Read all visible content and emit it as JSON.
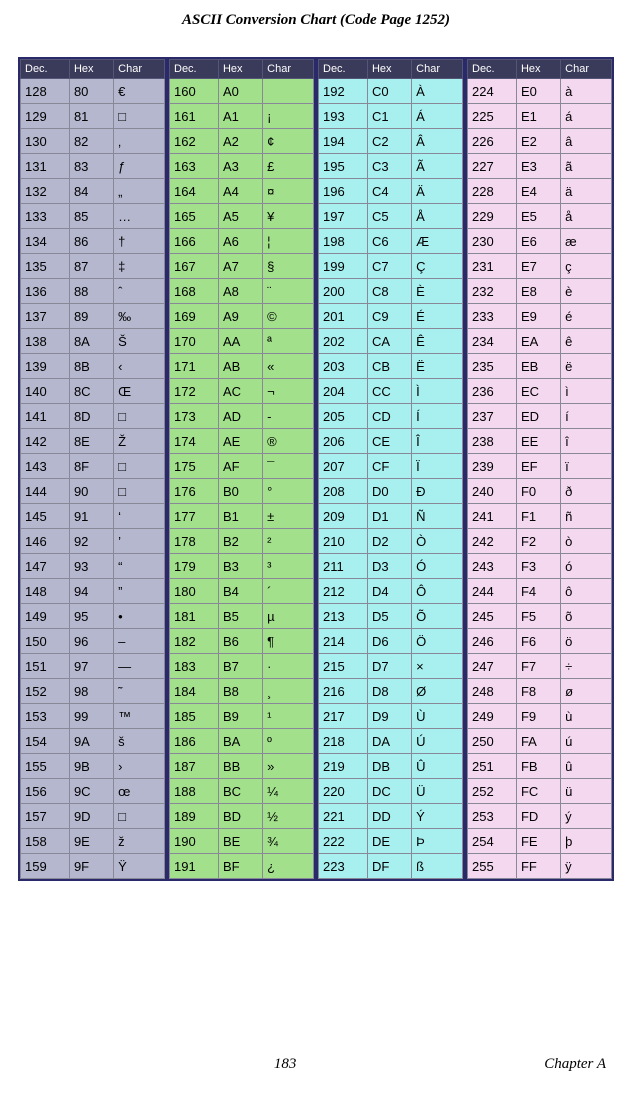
{
  "title": "ASCII Conversion Chart (Code Page 1252)",
  "page_number": "183",
  "chapter": "Chapter A",
  "headers": [
    "Dec.",
    "Hex",
    "Char"
  ],
  "column_colors": [
    "#b5b7ce",
    "#a2e08c",
    "#a8f0f0",
    "#f4d8f0"
  ],
  "header_bg": "#3a3a5a",
  "header_fg": "#ffffff",
  "border_color": "#2a2a6a",
  "columns": [
    [
      [
        "128",
        "80",
        "€"
      ],
      [
        "129",
        "81",
        "□"
      ],
      [
        "130",
        "82",
        "‚"
      ],
      [
        "131",
        "83",
        "ƒ"
      ],
      [
        "132",
        "84",
        "„"
      ],
      [
        "133",
        "85",
        "…"
      ],
      [
        "134",
        "86",
        "†"
      ],
      [
        "135",
        "87",
        "‡"
      ],
      [
        "136",
        "88",
        "ˆ"
      ],
      [
        "137",
        "89",
        "‰"
      ],
      [
        "138",
        "8A",
        "Š"
      ],
      [
        "139",
        "8B",
        "‹"
      ],
      [
        "140",
        "8C",
        "Œ"
      ],
      [
        "141",
        "8D",
        "□"
      ],
      [
        "142",
        "8E",
        "Ž"
      ],
      [
        "143",
        "8F",
        "□"
      ],
      [
        "144",
        "90",
        "□"
      ],
      [
        "145",
        "91",
        "‘"
      ],
      [
        "146",
        "92",
        "’"
      ],
      [
        "147",
        "93",
        "“"
      ],
      [
        "148",
        "94",
        "”"
      ],
      [
        "149",
        "95",
        "•"
      ],
      [
        "150",
        "96",
        "–"
      ],
      [
        "151",
        "97",
        "—"
      ],
      [
        "152",
        "98",
        "˜"
      ],
      [
        "153",
        "99",
        "™"
      ],
      [
        "154",
        "9A",
        "š"
      ],
      [
        "155",
        "9B",
        "›"
      ],
      [
        "156",
        "9C",
        "œ"
      ],
      [
        "157",
        "9D",
        "□"
      ],
      [
        "158",
        "9E",
        "ž"
      ],
      [
        "159",
        "9F",
        "Ÿ"
      ]
    ],
    [
      [
        "160",
        "A0",
        " "
      ],
      [
        "161",
        "A1",
        "¡"
      ],
      [
        "162",
        "A2",
        "¢"
      ],
      [
        "163",
        "A3",
        "£"
      ],
      [
        "164",
        "A4",
        "¤"
      ],
      [
        "165",
        "A5",
        "¥"
      ],
      [
        "166",
        "A6",
        "¦"
      ],
      [
        "167",
        "A7",
        "§"
      ],
      [
        "168",
        "A8",
        "¨"
      ],
      [
        "169",
        "A9",
        "©"
      ],
      [
        "170",
        "AA",
        "ª"
      ],
      [
        "171",
        "AB",
        "«"
      ],
      [
        "172",
        "AC",
        "¬"
      ],
      [
        "173",
        "AD",
        "-"
      ],
      [
        "174",
        "AE",
        "®"
      ],
      [
        "175",
        "AF",
        "¯"
      ],
      [
        "176",
        "B0",
        "°"
      ],
      [
        "177",
        "B1",
        "±"
      ],
      [
        "178",
        "B2",
        "²"
      ],
      [
        "179",
        "B3",
        "³"
      ],
      [
        "180",
        "B4",
        "´"
      ],
      [
        "181",
        "B5",
        "µ"
      ],
      [
        "182",
        "B6",
        "¶"
      ],
      [
        "183",
        "B7",
        "·"
      ],
      [
        "184",
        "B8",
        "¸"
      ],
      [
        "185",
        "B9",
        "¹"
      ],
      [
        "186",
        "BA",
        "º"
      ],
      [
        "187",
        "BB",
        "»"
      ],
      [
        "188",
        "BC",
        "¼"
      ],
      [
        "189",
        "BD",
        "½"
      ],
      [
        "190",
        "BE",
        "¾"
      ],
      [
        "191",
        "BF",
        "¿"
      ]
    ],
    [
      [
        "192",
        "C0",
        "À"
      ],
      [
        "193",
        "C1",
        "Á"
      ],
      [
        "194",
        "C2",
        "Â"
      ],
      [
        "195",
        "C3",
        "Ã"
      ],
      [
        "196",
        "C4",
        "Ä"
      ],
      [
        "197",
        "C5",
        "Å"
      ],
      [
        "198",
        "C6",
        "Æ"
      ],
      [
        "199",
        "C7",
        "Ç"
      ],
      [
        "200",
        "C8",
        "È"
      ],
      [
        "201",
        "C9",
        "É"
      ],
      [
        "202",
        "CA",
        "Ê"
      ],
      [
        "203",
        "CB",
        "Ë"
      ],
      [
        "204",
        "CC",
        "Ì"
      ],
      [
        "205",
        "CD",
        "Í"
      ],
      [
        "206",
        "CE",
        "Î"
      ],
      [
        "207",
        "CF",
        "Ï"
      ],
      [
        "208",
        "D0",
        "Ð"
      ],
      [
        "209",
        "D1",
        "Ñ"
      ],
      [
        "210",
        "D2",
        "Ò"
      ],
      [
        "211",
        "D3",
        "Ó"
      ],
      [
        "212",
        "D4",
        "Ô"
      ],
      [
        "213",
        "D5",
        "Õ"
      ],
      [
        "214",
        "D6",
        "Ö"
      ],
      [
        "215",
        "D7",
        "×"
      ],
      [
        "216",
        "D8",
        "Ø"
      ],
      [
        "217",
        "D9",
        "Ù"
      ],
      [
        "218",
        "DA",
        "Ú"
      ],
      [
        "219",
        "DB",
        "Û"
      ],
      [
        "220",
        "DC",
        "Ü"
      ],
      [
        "221",
        "DD",
        "Ý"
      ],
      [
        "222",
        "DE",
        "Þ"
      ],
      [
        "223",
        "DF",
        "ß"
      ]
    ],
    [
      [
        "224",
        "E0",
        "à"
      ],
      [
        "225",
        "E1",
        "á"
      ],
      [
        "226",
        "E2",
        "â"
      ],
      [
        "227",
        "E3",
        "ã"
      ],
      [
        "228",
        "E4",
        "ä"
      ],
      [
        "229",
        "E5",
        "å"
      ],
      [
        "230",
        "E6",
        "æ"
      ],
      [
        "231",
        "E7",
        "ç"
      ],
      [
        "232",
        "E8",
        "è"
      ],
      [
        "233",
        "E9",
        "é"
      ],
      [
        "234",
        "EA",
        "ê"
      ],
      [
        "235",
        "EB",
        "ë"
      ],
      [
        "236",
        "EC",
        "ì"
      ],
      [
        "237",
        "ED",
        "í"
      ],
      [
        "238",
        "EE",
        "î"
      ],
      [
        "239",
        "EF",
        "ï"
      ],
      [
        "240",
        "F0",
        "ð"
      ],
      [
        "241",
        "F1",
        "ñ"
      ],
      [
        "242",
        "F2",
        "ò"
      ],
      [
        "243",
        "F3",
        "ó"
      ],
      [
        "244",
        "F4",
        "ô"
      ],
      [
        "245",
        "F5",
        "õ"
      ],
      [
        "246",
        "F6",
        "ö"
      ],
      [
        "247",
        "F7",
        "÷"
      ],
      [
        "248",
        "F8",
        "ø"
      ],
      [
        "249",
        "F9",
        "ù"
      ],
      [
        "250",
        "FA",
        "ú"
      ],
      [
        "251",
        "FB",
        "û"
      ],
      [
        "252",
        "FC",
        "ü"
      ],
      [
        "253",
        "FD",
        "ý"
      ],
      [
        "254",
        "FE",
        "þ"
      ],
      [
        "255",
        "FF",
        "ÿ"
      ]
    ]
  ]
}
